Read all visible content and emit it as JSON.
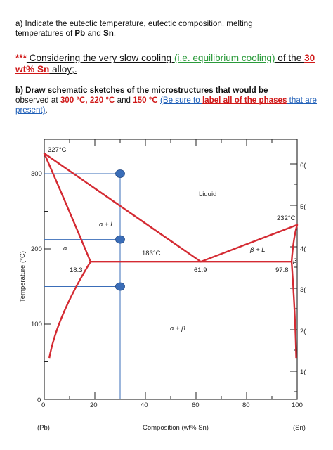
{
  "question_a": {
    "t1": "a) Indicate the eutectic temperature, eutectic composition, melting",
    "t2": "temperatures of ",
    "pb": "Pb",
    "t3": " and ",
    "sn": "Sn",
    "t4": "."
  },
  "context": {
    "stars": "***",
    "t1": " Considering the very slow cooling ",
    "green": "(i.e. equilibrium cooling)",
    "t2": " of the ",
    "red1": "30",
    "red2": "wt% Sn",
    "t3": " alloy;."
  },
  "question_b": {
    "t1": "b) Draw schematic sketches of the microstructures that would be",
    "t2": "observed at ",
    "temp1": "300 °C, 220 °C",
    "t3": " and ",
    "temp2": "150 °C",
    "blue1": "(Be sure to ",
    "redul": "label all of the phases",
    "blue2": " that are",
    "blue3": "present)",
    "t4": "."
  },
  "diagram": {
    "y_axis_label": "Temperature (°C)",
    "x_axis_label": "Composition (wt% Sn)",
    "x_ticks": [
      "0",
      "20",
      "40",
      "60",
      "80",
      "100"
    ],
    "y_ticks": [
      "0",
      "100",
      "200",
      "300"
    ],
    "left_end_label": "(Pb)",
    "right_end_label": "(Sn)",
    "right_cut_ticks": [
      "6(",
      "5(",
      "4(",
      "3(",
      "2(",
      "1("
    ],
    "labels": {
      "pb_melt": "327°C",
      "sn_melt": "232°C",
      "eutectic_temp": "183°C",
      "liquid": "Liquid",
      "alpha_l": "α + L",
      "beta_l": "β + L",
      "alpha": "α",
      "beta": "β",
      "alpha_beta": "α + β",
      "c_alpha": "18.3",
      "c_eut": "61.9",
      "c_beta": "97.8"
    },
    "colors": {
      "phase_lines": "#d42a32",
      "markers": "#3a6db8",
      "guides": "#3a6db8",
      "axes": "#222222"
    },
    "alloy": {
      "composition_wt_sn": 30,
      "temperatures_c": [
        300,
        220,
        150
      ]
    }
  }
}
